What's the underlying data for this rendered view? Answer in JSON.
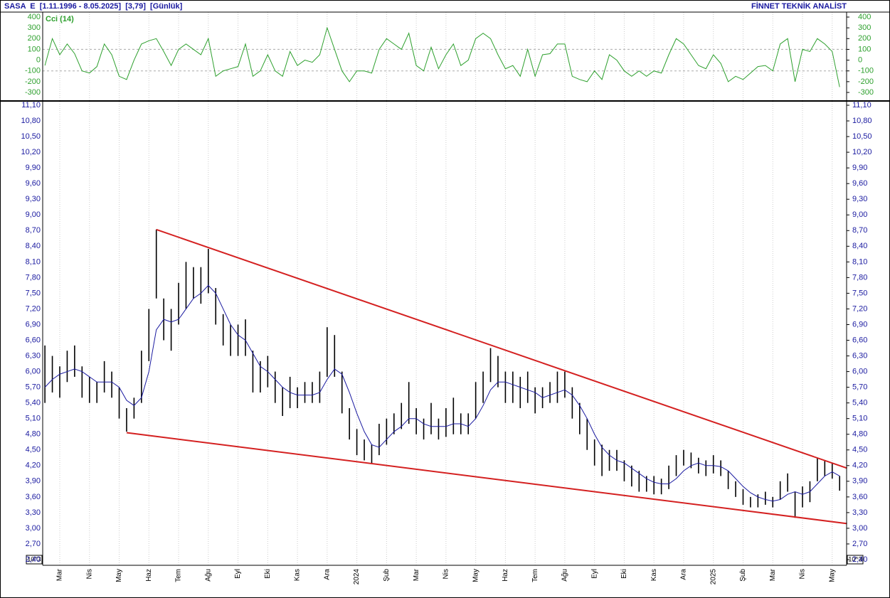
{
  "header": {
    "title": "SASA  E  [1.11.1996 - 8.05.2025]  [3,79]  [Günlük]",
    "brand": "FİNNET TEKNİK ANALİST",
    "axis_unit": "10^3"
  },
  "chart_data": [
    {
      "type": "range",
      "color": "#000000",
      "ma_color": "#1a1aa0",
      "categories": [
        null,
        null,
        "Mar",
        null,
        null,
        null,
        "Nis",
        null,
        null,
        null,
        "May",
        null,
        null,
        null,
        "Haz",
        null,
        null,
        null,
        "Tem",
        null,
        null,
        null,
        "Ağu",
        null,
        null,
        null,
        "Eyl",
        null,
        null,
        null,
        "Eki",
        null,
        null,
        null,
        "Kas",
        null,
        null,
        null,
        "Ara",
        null,
        null,
        null,
        "2024",
        null,
        null,
        null,
        "Şub",
        null,
        null,
        null,
        "Mar",
        null,
        null,
        null,
        "Nis",
        null,
        null,
        null,
        "May",
        null,
        null,
        null,
        "Haz",
        null,
        null,
        null,
        "Tem",
        null,
        null,
        null,
        "Ağu",
        null,
        null,
        null,
        "Eyl",
        null,
        null,
        null,
        "Eki",
        null,
        null,
        null,
        "Kas",
        null,
        null,
        null,
        "Ara",
        null,
        null,
        null,
        "2025",
        null,
        null,
        null,
        "Şub",
        null,
        null,
        null,
        "Mar",
        null,
        null,
        null,
        "Nis",
        null,
        null,
        null,
        "May",
        null
      ],
      "low": [
        5.4,
        5.6,
        5.5,
        5.8,
        5.9,
        5.5,
        5.4,
        5.4,
        5.6,
        5.5,
        5.1,
        4.85,
        5.1,
        5.4,
        6.2,
        7.4,
        6.6,
        6.4,
        6.9,
        7.2,
        7.4,
        7.3,
        7.5,
        6.9,
        6.5,
        6.3,
        6.3,
        6.3,
        5.6,
        5.6,
        5.7,
        5.4,
        5.15,
        5.3,
        5.3,
        5.4,
        5.4,
        5.4,
        5.9,
        5.9,
        5.2,
        4.7,
        4.4,
        4.3,
        4.25,
        4.4,
        4.6,
        4.8,
        4.9,
        5.0,
        4.8,
        4.7,
        4.8,
        4.7,
        4.75,
        4.8,
        4.8,
        4.8,
        5.1,
        5.4,
        5.8,
        5.7,
        5.4,
        5.4,
        5.3,
        5.4,
        5.2,
        5.3,
        5.4,
        5.4,
        5.5,
        5.1,
        4.8,
        4.5,
        4.2,
        4.0,
        4.1,
        4.1,
        3.9,
        3.8,
        3.7,
        3.7,
        3.65,
        3.65,
        3.75,
        4.0,
        4.2,
        4.15,
        4.05,
        4.0,
        4.05,
        4.0,
        3.75,
        3.6,
        3.45,
        3.4,
        3.4,
        3.45,
        3.4,
        3.55,
        3.7,
        3.2,
        3.4,
        3.5,
        3.9,
        4.0,
        3.95,
        3.72
      ],
      "high": [
        6.5,
        6.3,
        6.1,
        6.4,
        6.5,
        6.1,
        5.9,
        5.8,
        6.2,
        6.0,
        5.7,
        5.3,
        5.5,
        6.4,
        7.2,
        8.72,
        7.4,
        7.2,
        7.7,
        8.1,
        8.0,
        8.0,
        8.35,
        7.6,
        7.1,
        6.9,
        6.9,
        7.0,
        6.4,
        6.2,
        6.3,
        6.0,
        5.7,
        5.9,
        5.7,
        5.8,
        5.8,
        6.0,
        6.85,
        6.7,
        6.0,
        5.3,
        4.9,
        4.7,
        4.6,
        5.0,
        5.1,
        5.2,
        5.4,
        5.8,
        5.3,
        5.1,
        5.4,
        5.1,
        5.3,
        5.5,
        5.2,
        5.2,
        5.8,
        6.0,
        6.45,
        6.3,
        6.0,
        6.0,
        5.9,
        6.0,
        5.7,
        5.7,
        5.8,
        6.0,
        6.0,
        5.7,
        5.4,
        5.1,
        4.7,
        4.6,
        4.5,
        4.5,
        4.3,
        4.2,
        4.1,
        4.0,
        4.0,
        3.95,
        4.2,
        4.4,
        4.5,
        4.45,
        4.35,
        4.3,
        4.4,
        4.3,
        4.1,
        3.9,
        3.75,
        3.6,
        3.65,
        3.7,
        3.6,
        3.9,
        4.05,
        3.7,
        3.8,
        3.9,
        4.35,
        4.3,
        4.25,
        4.0
      ],
      "ma": [
        5.7,
        5.85,
        5.95,
        6.0,
        6.05,
        6.0,
        5.9,
        5.8,
        5.8,
        5.8,
        5.7,
        5.45,
        5.35,
        5.5,
        6.0,
        6.8,
        7.0,
        6.95,
        7.0,
        7.2,
        7.4,
        7.5,
        7.65,
        7.5,
        7.2,
        6.9,
        6.7,
        6.6,
        6.35,
        6.1,
        6.0,
        5.85,
        5.7,
        5.6,
        5.55,
        5.55,
        5.55,
        5.6,
        5.85,
        6.05,
        5.95,
        5.6,
        5.2,
        4.85,
        4.6,
        4.55,
        4.7,
        4.85,
        4.95,
        5.1,
        5.1,
        5.0,
        4.95,
        4.95,
        4.95,
        5.0,
        5.0,
        4.95,
        5.1,
        5.35,
        5.65,
        5.8,
        5.8,
        5.75,
        5.7,
        5.65,
        5.6,
        5.5,
        5.55,
        5.6,
        5.65,
        5.55,
        5.35,
        5.1,
        4.8,
        4.55,
        4.4,
        4.3,
        4.25,
        4.15,
        4.05,
        3.95,
        3.88,
        3.85,
        3.85,
        3.95,
        4.1,
        4.2,
        4.25,
        4.2,
        4.2,
        4.18,
        4.1,
        3.95,
        3.8,
        3.68,
        3.6,
        3.55,
        3.52,
        3.55,
        3.65,
        3.7,
        3.65,
        3.7,
        3.85,
        4.0,
        4.08,
        4.0
      ],
      "ylim": [
        2.4,
        11.1
      ],
      "yticks": [
        {
          "value": 2.4,
          "label": "2,40"
        },
        {
          "value": 2.7,
          "label": "2,70"
        },
        {
          "value": 3.0,
          "label": "3,00"
        },
        {
          "value": 3.3,
          "label": "3,30"
        },
        {
          "value": 3.6,
          "label": "3,60"
        },
        {
          "value": 3.9,
          "label": "3,90"
        },
        {
          "value": 4.2,
          "label": "4,20"
        },
        {
          "value": 4.5,
          "label": "4,50"
        },
        {
          "value": 4.8,
          "label": "4,80"
        },
        {
          "value": 5.1,
          "label": "5,10"
        },
        {
          "value": 5.4,
          "label": "5,40"
        },
        {
          "value": 5.7,
          "label": "5,70"
        },
        {
          "value": 6.0,
          "label": "6,00"
        },
        {
          "value": 6.3,
          "label": "6,30"
        },
        {
          "value": 6.6,
          "label": "6,60"
        },
        {
          "value": 6.9,
          "label": "6,90"
        },
        {
          "value": 7.2,
          "label": "7,20"
        },
        {
          "value": 7.5,
          "label": "7,50"
        },
        {
          "value": 7.8,
          "label": "7,80"
        },
        {
          "value": 8.1,
          "label": "8,10"
        },
        {
          "value": 8.4,
          "label": "8,40"
        },
        {
          "value": 8.7,
          "label": "8,70"
        },
        {
          "value": 9.0,
          "label": "9,00"
        },
        {
          "value": 9.3,
          "label": "9,30"
        },
        {
          "value": 9.6,
          "label": "9,60"
        },
        {
          "value": 9.9,
          "label": "9,90"
        },
        {
          "value": 10.2,
          "label": "10,20"
        },
        {
          "value": 10.5,
          "label": "10,50"
        },
        {
          "value": 10.8,
          "label": "10,80"
        },
        {
          "value": 11.1,
          "label": "11,10"
        }
      ],
      "trendlines": [
        {
          "color": "#d42020",
          "x": [
            15,
            108
          ],
          "y": [
            8.72,
            4.15
          ]
        },
        {
          "color": "#d42020",
          "x": [
            11,
            108
          ],
          "y": [
            4.83,
            3.09
          ]
        }
      ]
    },
    {
      "type": "line",
      "title": "Cci (14)",
      "color": "#2ea02e",
      "values": [
        -50,
        200,
        50,
        150,
        60,
        -100,
        -120,
        -60,
        150,
        50,
        -150,
        -180,
        0,
        150,
        180,
        200,
        80,
        -50,
        100,
        150,
        100,
        50,
        200,
        -150,
        -100,
        -80,
        -60,
        150,
        -150,
        -100,
        50,
        -100,
        -150,
        80,
        -50,
        0,
        -20,
        50,
        300,
        100,
        -100,
        -200,
        -100,
        -100,
        -120,
        100,
        200,
        150,
        100,
        250,
        -50,
        -100,
        120,
        -80,
        50,
        150,
        -50,
        0,
        200,
        250,
        200,
        50,
        -80,
        -50,
        -150,
        100,
        -150,
        50,
        60,
        150,
        150,
        -150,
        -180,
        -200,
        -100,
        -180,
        50,
        0,
        -100,
        -150,
        -100,
        -150,
        -100,
        -120,
        50,
        200,
        150,
        50,
        -50,
        -80,
        50,
        -30,
        -200,
        -150,
        -180,
        -120,
        -60,
        -50,
        -100,
        150,
        200,
        -200,
        100,
        80,
        200,
        150,
        80,
        -250
      ],
      "ylim": [
        -300,
        400
      ],
      "yticks": [
        400,
        300,
        200,
        100,
        0,
        -100,
        -200,
        -300
      ],
      "dashed_levels": [
        100,
        -100
      ]
    }
  ]
}
